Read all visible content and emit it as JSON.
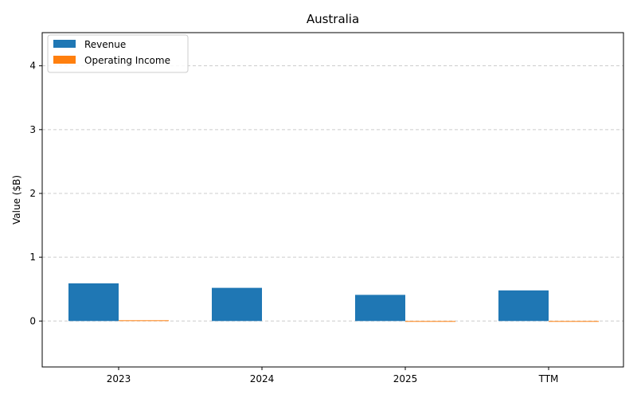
{
  "chart_data": {
    "type": "bar",
    "title": "Australia",
    "xlabel": "",
    "ylabel": "Value ($B)",
    "categories": [
      "2023",
      "2024",
      "2025",
      "TTM"
    ],
    "series": [
      {
        "name": "Revenue",
        "color": "#1f77b4",
        "values": [
          0.59,
          0.52,
          0.41,
          0.48
        ]
      },
      {
        "name": "Operating Income",
        "color": "#ff7f0e",
        "values": [
          0.012,
          0.0,
          -0.01,
          -0.006
        ]
      }
    ],
    "ylim": [
      -0.72,
      4.52
    ],
    "yticks": [
      0,
      1,
      2,
      3,
      4
    ],
    "grid": "y-dashed",
    "legend_position": "top-left"
  }
}
